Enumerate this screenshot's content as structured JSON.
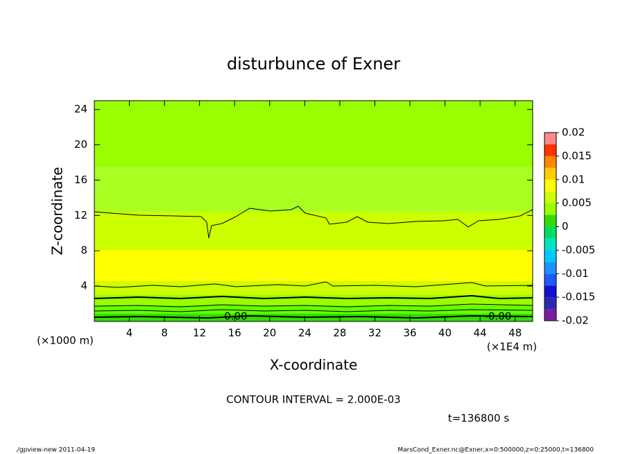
{
  "chart_data": {
    "type": "contour",
    "title": "disturbunce of Exner",
    "xlabel": "X-coordinate",
    "ylabel": "Z-coordinate",
    "xunit": "(×1E4 m)",
    "yunit": "(×1000 m)",
    "xlim": [
      0,
      50
    ],
    "xticks": [
      4,
      8,
      12,
      16,
      20,
      24,
      28,
      32,
      36,
      40,
      44,
      48
    ],
    "ylim": [
      0,
      25
    ],
    "yticks": [
      4,
      8,
      12,
      16,
      20,
      24
    ],
    "colorbar": {
      "lim": [
        -0.02,
        0.02
      ],
      "ticks": [
        -0.02,
        -0.015,
        -0.01,
        -0.005,
        0,
        0.005,
        0.01,
        0.015,
        0.02
      ],
      "colors": [
        "#7a1fa2",
        "#2a2ab0",
        "#1010d8",
        "#1e5aff",
        "#1e90ff",
        "#00c8ff",
        "#00e5c0",
        "#00dd66",
        "#33dd00",
        "#99ff00",
        "#ccff00",
        "#ffff00",
        "#ffcc00",
        "#ff8800",
        "#ff3300",
        "#ff8888"
      ]
    },
    "contour_labels": [
      "0.00",
      "-0.00"
    ],
    "contour_interval": "CONTOUR INTERVAL = 2.000E-03",
    "time": "t=136800 s",
    "footer_left": "./gpview-new  2011-04-19",
    "footer_right": "MarsCond_Exner.nc@Exner,x=0:500000,z=0:25000,t=136800"
  }
}
